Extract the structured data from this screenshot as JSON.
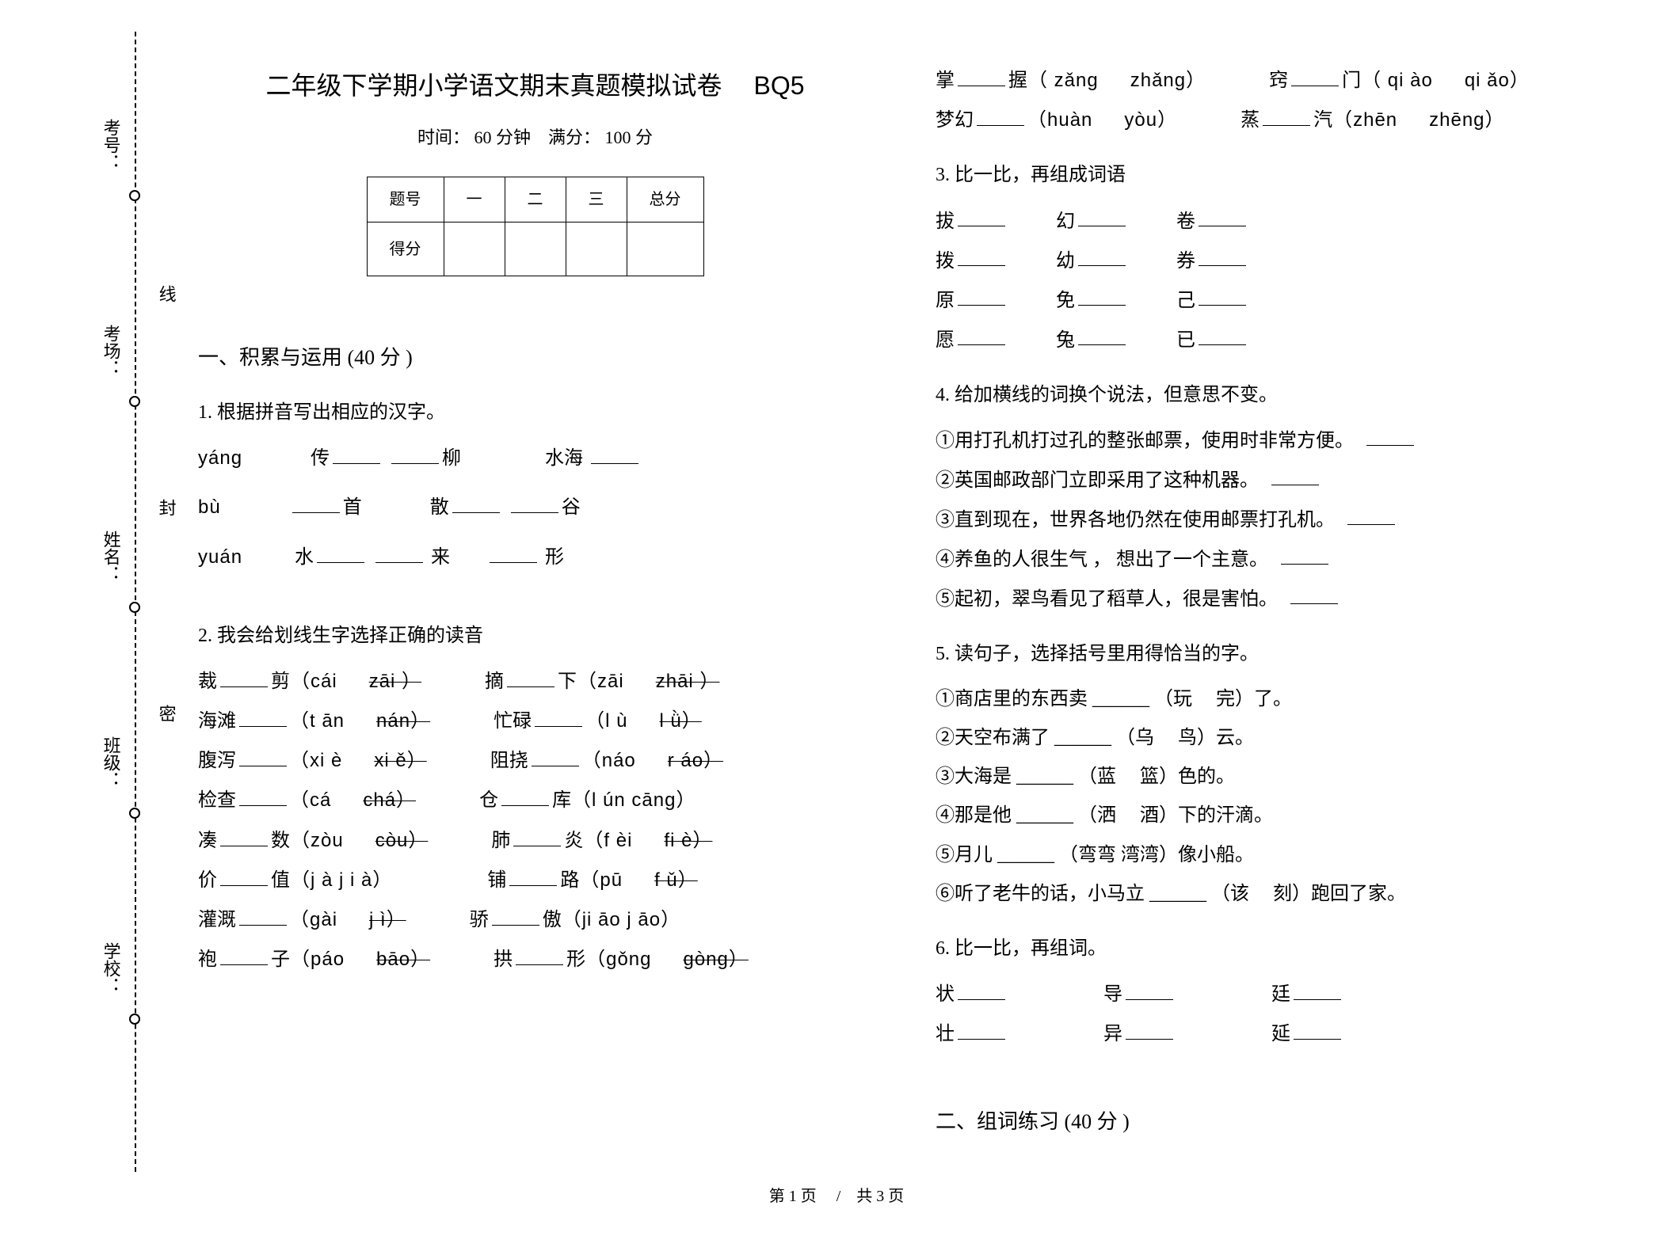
{
  "title": "二年级下学期小学语文期末真题模拟试卷",
  "title_code": "BQ5",
  "meta": "时间： 60 分钟　满分： 100 分",
  "score_table": {
    "headers": [
      "题号",
      "一",
      "二",
      "三",
      "总分"
    ],
    "row_label": "得分"
  },
  "binding": {
    "labels": [
      "考号：",
      "考场：",
      "姓名：",
      "班级：",
      "学校："
    ],
    "side_labels": [
      "线",
      "封",
      "密"
    ]
  },
  "sections": {
    "s1_title": "一、积累与运用  (40 分 )",
    "s2_title": "二、组词练习 (40 分 )"
  },
  "q1": {
    "title": "1.  根据拼音写出相应的汉字。",
    "l1a": "yáng",
    "l1b": "传",
    "l1c": "柳",
    "l1d": "水海",
    "l2a": "bù",
    "l2b": "首",
    "l2c": "散",
    "l2d": "谷",
    "l3a": "yuán",
    "l3b": "水",
    "l3c": "来",
    "l3d": "形"
  },
  "q2": {
    "title": "2.  我会给划线生字选择正确的读音",
    "rows": [
      [
        "裁",
        "剪（cái",
        "zāi ）",
        "摘",
        "下（zāi",
        "zhāi ）"
      ],
      [
        "海滩",
        "（t ān",
        "nán）",
        "忙碌",
        "（l ù",
        "l ǜ）"
      ],
      [
        "腹泻",
        "（xi è",
        "xi ě）",
        "阻挠",
        "（náo",
        "r áo）"
      ],
      [
        "检查",
        "（cá",
        "chá）",
        "仓",
        "库（l ún  cāng）",
        ""
      ],
      [
        "凑",
        "数（zòu",
        "còu）",
        "肺",
        "炎（f èi",
        "fi è）"
      ],
      [
        "价",
        "值（j à  j i à）",
        "",
        "铺",
        "路（pū",
        "f ǔ）"
      ],
      [
        "灌溉",
        "（gài",
        "j ì）",
        "骄",
        "傲（ji āo  j āo）",
        ""
      ],
      [
        "袍",
        "子（páo",
        "bāo）",
        "拱",
        "形（gǒng",
        "gòng）"
      ]
    ],
    "extra_rows": [
      [
        "掌",
        "握（ zǎng",
        "zhǎng）",
        "窍",
        "门（ qi ào",
        "qi ǎo）"
      ],
      [
        "梦幻",
        "（huàn",
        "yòu）",
        "蒸",
        "汽（zhēn",
        "zhēng）"
      ]
    ]
  },
  "q3": {
    "title": "3.  比一比，再组成词语",
    "rows": [
      [
        "拔",
        "幻",
        "卷"
      ],
      [
        "拨",
        "幼",
        "券"
      ],
      [
        "原",
        "免",
        "己"
      ],
      [
        "愿",
        "兔",
        "已"
      ]
    ]
  },
  "q4": {
    "title": "4.  给加横线的词换个说法，但意思不变。",
    "items": [
      "①用打孔机打过孔的整张邮票，使用时非常方便。",
      "②英国邮政部门立即采用了这种机器。",
      "③直到现在，世界各地仍然在使用邮票打孔机。",
      "④养鱼的人很生气 ，  想出了一个主意。",
      "⑤起初，翠鸟看见了稻草人，很是害怕。"
    ]
  },
  "q5": {
    "title": "5.  读句子，选择括号里用得恰当的字。",
    "items": [
      "①商店里的东西卖  ______ （玩　 完）了。",
      "②天空布满了  ______ （乌　 鸟）云。",
      "③大海是  ______ （蓝　 篮）色的。",
      "④那是他  ______ （洒　 酒）下的汗滴。",
      "⑤月儿  ______ （弯弯  湾湾）像小船。",
      "⑥听了老牛的话，小马立  ______ （该　 刻）跑回了家。"
    ]
  },
  "q6": {
    "title": "6.  比一比，再组词。",
    "rows": [
      [
        "状",
        "导",
        "廷"
      ],
      [
        "壮",
        "异",
        "延"
      ]
    ]
  },
  "footer": "第 1 页　 /　共 3 页"
}
